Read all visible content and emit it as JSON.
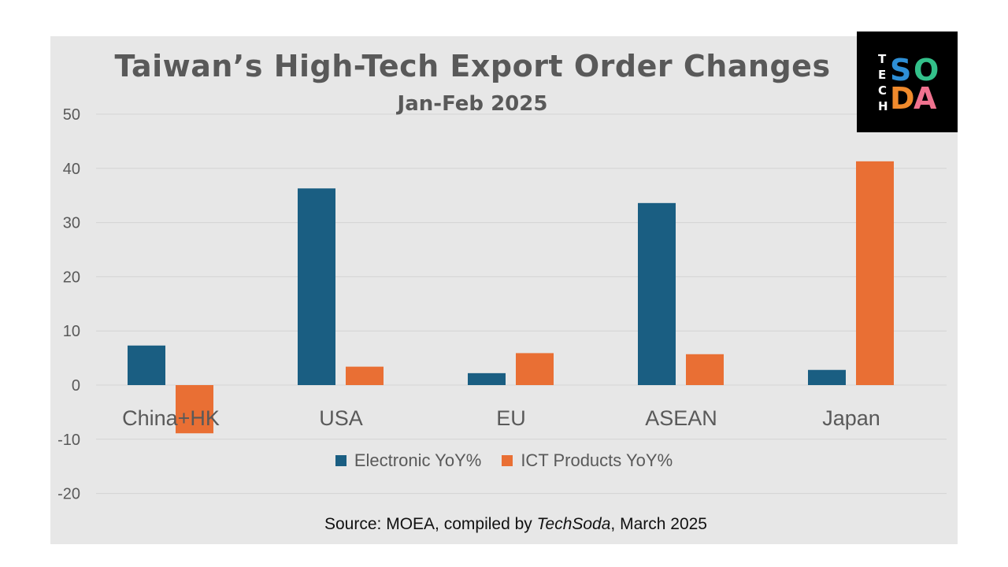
{
  "chart_data": {
    "type": "bar",
    "title": "Taiwan’s High-Tech Export Order Changes",
    "subtitle": "Jan-Feb 2025",
    "categories": [
      "China+HK",
      "USA",
      "EU",
      "ASEAN",
      "Japan"
    ],
    "series": [
      {
        "name": "Electronic YoY%",
        "color": "#1a5e82",
        "values": [
          7.3,
          36.3,
          2.2,
          33.6,
          2.8
        ]
      },
      {
        "name": "ICT Products YoY%",
        "color": "#e96f34",
        "values": [
          -8.9,
          3.4,
          5.9,
          5.7,
          41.3
        ]
      }
    ],
    "y_ticks": [
      "50",
      "40",
      "30",
      "20",
      "10",
      "0",
      "-10",
      "-20"
    ],
    "ylim": [
      -20,
      50
    ],
    "legend_position": "bottom",
    "grid": true
  },
  "source": {
    "prefix": "Source: MOEA, compiled by ",
    "brand": "TechSoda",
    "suffix": ", March 2025"
  },
  "logo": {
    "letters_small": [
      "T",
      "E",
      "C",
      "H"
    ],
    "letters_big": [
      "S",
      "O",
      "D",
      "A"
    ],
    "colors": {
      "S": "#2e8fd6",
      "O": "#33c08a",
      "D": "#f08a2c",
      "A": "#f0728f"
    }
  }
}
